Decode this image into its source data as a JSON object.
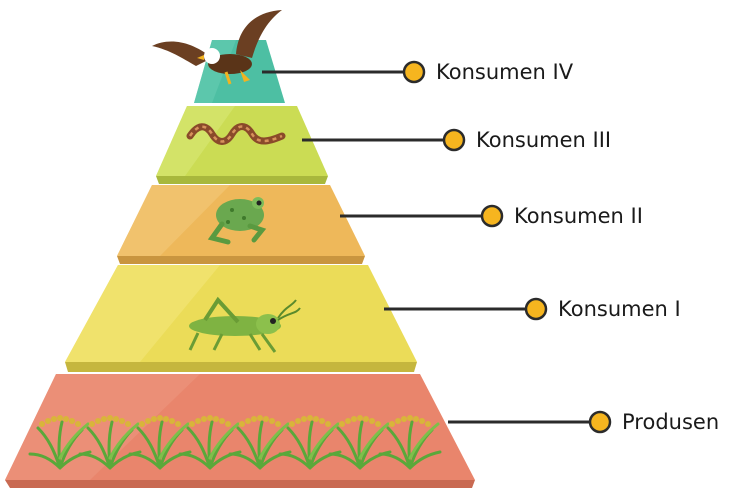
{
  "levels": [
    {
      "label": "Konsumen IV",
      "organism": "eagle",
      "color": "#4dbfa3"
    },
    {
      "label": "Konsumen III",
      "organism": "snake",
      "color": "#cbdc54"
    },
    {
      "label": "Konsumen II",
      "organism": "frog",
      "color": "#eeb85a"
    },
    {
      "label": "Konsumen I",
      "organism": "grasshopper",
      "color": "#ebdc58"
    },
    {
      "label": "Produsen",
      "organism": "rice-plants",
      "color": "#e9856c"
    }
  ],
  "marker_color": "#f6b51f",
  "connector_color": "#2b2b2b"
}
